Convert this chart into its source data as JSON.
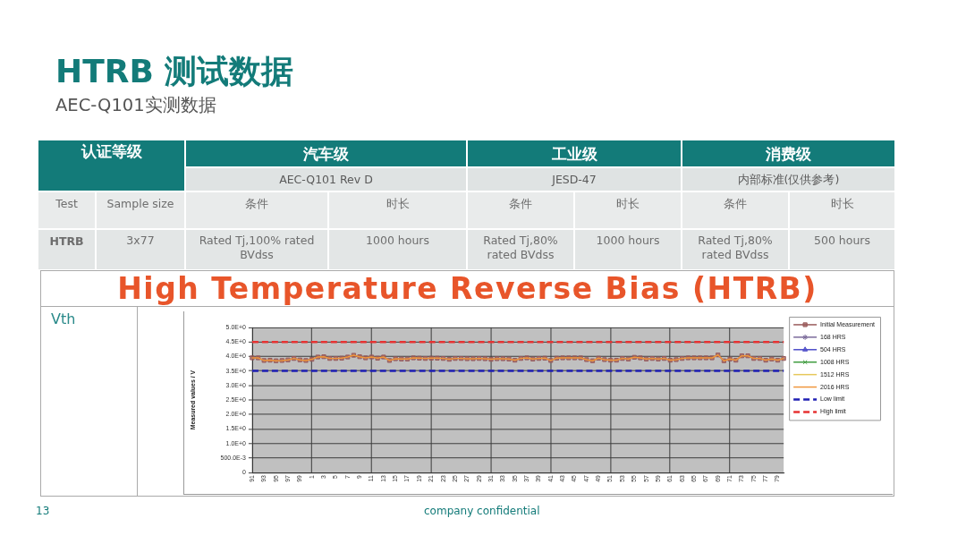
{
  "chart_data": [
    {
      "type": "other",
      "title": "HTRB 测试数据",
      "subtitle": "AEC-Q101实测数据",
      "annotations": [
        "认证等级",
        "汽车级",
        "工业级",
        "消费级",
        "AEC-Q101 Rev D",
        "JESD-47",
        "内部标准(仅供参考)",
        "Test",
        "Sample size",
        "条件",
        "时长",
        "条件",
        "时长",
        "条件",
        "时长",
        "HTRB",
        "3x77",
        "Rated Tj,100% rated BVdss",
        "1000 hours",
        "Rated Tj,80% rated BVdss",
        "1000 hours",
        "Rated Tj,80% rated BVdss",
        "500 hours",
        "13",
        "company confidential"
      ]
    },
    {
      "type": "line",
      "title": "High Temperature Reverse Bias (HTRB)",
      "ylabel": "Measured values / V",
      "annotations": [
        "Vth"
      ],
      "categories": [
        "91",
        null,
        "93",
        null,
        "95",
        null,
        "97",
        null,
        "99",
        null,
        "1",
        null,
        "3",
        null,
        "5",
        null,
        "7",
        null,
        "9",
        null,
        "11",
        null,
        "13",
        null,
        "15",
        null,
        "17",
        null,
        "19",
        null,
        "21",
        null,
        "23",
        null,
        "25",
        null,
        "27",
        null,
        "29",
        null,
        "31",
        null,
        "33",
        null,
        "35",
        null,
        "37",
        null,
        "39",
        null,
        "41",
        null,
        "43",
        null,
        "45",
        null,
        "47",
        null,
        "49",
        null,
        "51",
        null,
        "53",
        null,
        "55",
        null,
        "57",
        null,
        "59",
        null,
        "61",
        null,
        "63",
        null,
        "65",
        null,
        "67",
        null,
        "69",
        null,
        "71",
        null,
        "73",
        null,
        "75",
        null,
        "77",
        null,
        "79",
        null
      ],
      "series": [
        {
          "name": "Initial Measurement",
          "color": "#995a5a",
          "marker": "square",
          "values": [
            3.95,
            3.95,
            3.86,
            3.87,
            3.85,
            3.86,
            3.88,
            3.93,
            3.88,
            3.86,
            3.9,
            3.98,
            3.99,
            3.93,
            3.93,
            3.94,
            3.98,
            4.04,
            3.99,
            3.95,
            3.98,
            3.94,
            3.98,
            3.86,
            3.92,
            3.91,
            3.91,
            3.95,
            3.94,
            3.93,
            3.94,
            3.94,
            3.93,
            3.9,
            3.93,
            3.93,
            3.92,
            3.92,
            3.93,
            3.92,
            3.9,
            3.92,
            3.92,
            3.91,
            3.87,
            3.93,
            3.95,
            3.91,
            3.93,
            3.94,
            3.86,
            3.94,
            3.95,
            3.95,
            3.95,
            3.95,
            3.89,
            3.85,
            3.94,
            3.89,
            3.87,
            3.87,
            3.93,
            3.91,
            3.97,
            3.95,
            3.91,
            3.93,
            3.91,
            3.93,
            3.87,
            3.89,
            3.93,
            3.95,
            3.95,
            3.95,
            3.95,
            3.95,
            4.05,
            3.85,
            3.91,
            3.87,
            4.02,
            4.02,
            3.93,
            3.93,
            3.87,
            3.91,
            3.87,
            3.93
          ]
        },
        {
          "name": "168 HRS",
          "color": "#7a6a9a",
          "marker": "star",
          "values": [
            null,
            null,
            null,
            null,
            null,
            null,
            null,
            null,
            null,
            null,
            null,
            null,
            null,
            null,
            null,
            null,
            null,
            null,
            null,
            null,
            null,
            null,
            null,
            null,
            null,
            null,
            null,
            null,
            null,
            null,
            null,
            null,
            null,
            null,
            null,
            null,
            null,
            null,
            null,
            null,
            null,
            null,
            null,
            null,
            null,
            null,
            null,
            null,
            null,
            null,
            null,
            null,
            null,
            null,
            null,
            null,
            null,
            null,
            null,
            null,
            null,
            null,
            null,
            null,
            null,
            null,
            null,
            null,
            null,
            null,
            null,
            null,
            null,
            null,
            null,
            null,
            null,
            null,
            null,
            null,
            null,
            null,
            null,
            null,
            null,
            null,
            null,
            null,
            null,
            null
          ]
        },
        {
          "name": "504 HRS",
          "color": "#4b4bc8",
          "marker": "triangle",
          "values": [
            null,
            null,
            null,
            null,
            null,
            null,
            null,
            null,
            null,
            null,
            null,
            null,
            null,
            null,
            null,
            null,
            null,
            null,
            null,
            null,
            null,
            null,
            null,
            null,
            null,
            null,
            null,
            null,
            null,
            null,
            null,
            null,
            null,
            null,
            null,
            null,
            null,
            null,
            null,
            null,
            null,
            null,
            null,
            null,
            null,
            null,
            null,
            null,
            null,
            null,
            null,
            null,
            null,
            null,
            null,
            null,
            null,
            null,
            null,
            null,
            null,
            null,
            null,
            null,
            null,
            null,
            null,
            null,
            null,
            null,
            null,
            null,
            null,
            null,
            null,
            null,
            null,
            null,
            null,
            null,
            null,
            null,
            null,
            null,
            null,
            null,
            null,
            null,
            null,
            null
          ]
        },
        {
          "name": "1008 HRS",
          "color": "#3c9a3c",
          "marker": "cross",
          "values": [
            null,
            null,
            null,
            null,
            null,
            null,
            null,
            null,
            null,
            null,
            null,
            null,
            null,
            null,
            null,
            null,
            null,
            null,
            null,
            null,
            null,
            null,
            null,
            null,
            null,
            null,
            null,
            null,
            null,
            null,
            null,
            null,
            null,
            null,
            null,
            null,
            null,
            null,
            null,
            null,
            null,
            null,
            null,
            null,
            null,
            null,
            null,
            null,
            null,
            null,
            null,
            null,
            null,
            null,
            null,
            null,
            null,
            null,
            null,
            null,
            null,
            null,
            null,
            null,
            null,
            null,
            null,
            null,
            null,
            null,
            null,
            null,
            null,
            null,
            null,
            null,
            null,
            null,
            null,
            null,
            null,
            null,
            null,
            null,
            null,
            null,
            null,
            null,
            null,
            null
          ]
        },
        {
          "name": "1512 HRS",
          "color": "#e6c85a",
          "marker": "none",
          "values": [
            null,
            null,
            null,
            null,
            null,
            null,
            null,
            null,
            null,
            null,
            null,
            null,
            null,
            null,
            null,
            null,
            null,
            null,
            null,
            null,
            null,
            null,
            null,
            null,
            null,
            null,
            null,
            null,
            null,
            null,
            null,
            null,
            null,
            null,
            null,
            null,
            null,
            null,
            null,
            null,
            null,
            null,
            null,
            null,
            null,
            null,
            null,
            null,
            null,
            null,
            null,
            null,
            null,
            null,
            null,
            null,
            null,
            null,
            null,
            null,
            null,
            null,
            null,
            null,
            null,
            null,
            null,
            null,
            null,
            null,
            null,
            null,
            null,
            null,
            null,
            null,
            null,
            null,
            null,
            null,
            null,
            null,
            null,
            null,
            null,
            null,
            null,
            null,
            null,
            null
          ]
        },
        {
          "name": "2016 HRS",
          "color": "#f0963c",
          "marker": "none",
          "values": [
            3.95,
            3.95,
            3.86,
            3.87,
            3.85,
            3.86,
            3.88,
            3.93,
            3.88,
            3.86,
            3.9,
            3.98,
            3.99,
            3.93,
            3.93,
            3.94,
            3.98,
            4.04,
            3.99,
            3.95,
            3.98,
            3.94,
            3.98,
            3.86,
            3.92,
            3.91,
            3.91,
            3.95,
            3.94,
            3.93,
            3.94,
            3.94,
            3.93,
            3.9,
            3.93,
            3.93,
            3.92,
            3.92,
            3.93,
            3.92,
            3.9,
            3.92,
            3.92,
            3.91,
            3.87,
            3.93,
            3.95,
            3.91,
            3.93,
            3.94,
            3.86,
            3.94,
            3.95,
            3.95,
            3.95,
            3.95,
            3.89,
            3.85,
            3.94,
            3.89,
            3.87,
            3.87,
            3.93,
            3.91,
            3.97,
            3.95,
            3.91,
            3.93,
            3.91,
            3.93,
            3.87,
            3.89,
            3.93,
            3.95,
            3.95,
            3.95,
            3.95,
            3.95,
            4.05,
            3.85,
            3.91,
            3.87,
            4.02,
            4.02,
            3.93,
            3.93,
            3.87,
            3.91,
            3.87,
            3.93
          ]
        }
      ],
      "ref_lines": [
        {
          "axis": "y",
          "value": 3.5,
          "label": "Low limit",
          "color": "#1f1fb4",
          "line_style": "dashed"
        },
        {
          "axis": "y",
          "value": 4.5,
          "label": "High limit",
          "color": "#e63232",
          "line_style": "dashed"
        }
      ],
      "ylim": [
        0,
        5
      ],
      "yticks": [
        0,
        {
          "value": 0.5,
          "label": "500.0E-3"
        },
        {
          "value": 1,
          "label": "1.0E+0"
        },
        {
          "value": 1.5,
          "label": "1.5E+0"
        },
        {
          "value": 2,
          "label": "2.0E+0"
        },
        {
          "value": 2.5,
          "label": "2.5E+0"
        },
        {
          "value": 3,
          "label": "3.0E+0"
        },
        {
          "value": 3.5,
          "label": "3.5E+0"
        },
        {
          "value": 4,
          "label": "4.0E+0"
        },
        {
          "value": 4.5,
          "label": "4.5E+0"
        },
        {
          "value": 5,
          "label": "5.0E+0"
        }
      ],
      "grid": true,
      "legend": "right"
    }
  ]
}
